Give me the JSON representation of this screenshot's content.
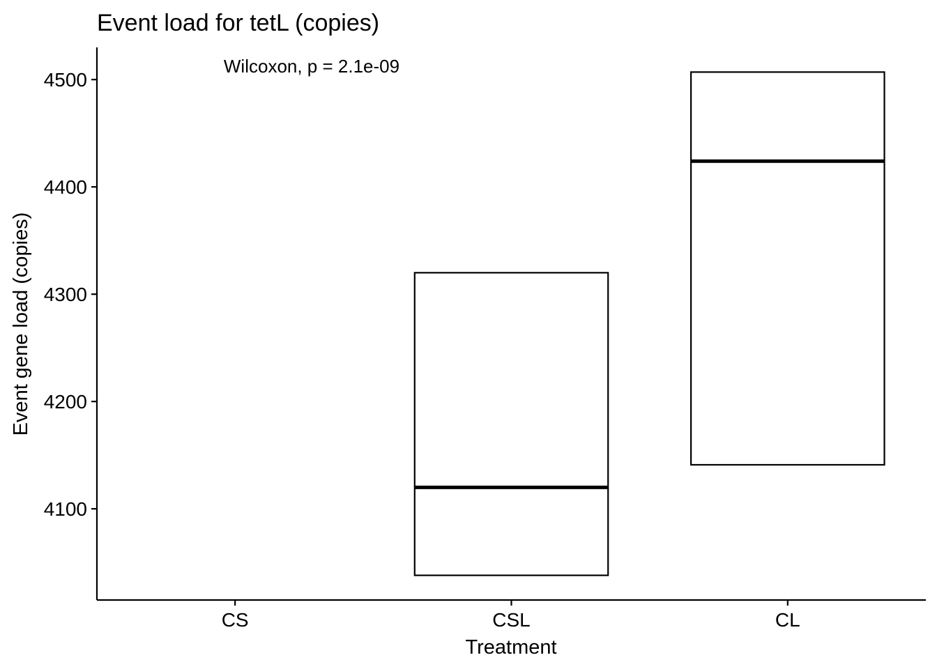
{
  "chart_data": {
    "type": "box",
    "title": "Event load for tetL (copies)",
    "xlabel": "Treatment",
    "ylabel": "Event gene load (copies)",
    "categories": [
      "CS",
      "CSL",
      "CL"
    ],
    "boxes": [
      {
        "category": "CS",
        "q1": null,
        "median": null,
        "q3": null
      },
      {
        "category": "CSL",
        "q1": 4038,
        "median": 4120,
        "q3": 4320
      },
      {
        "category": "CL",
        "q1": 4141,
        "median": 4424,
        "q3": 4507
      }
    ],
    "yticks": [
      4100,
      4200,
      4300,
      4400,
      4500
    ],
    "ylim": [
      4015,
      4530
    ],
    "annotation": "Wilcoxon, p = 2.1e-09",
    "grid": false,
    "legend": "none"
  }
}
